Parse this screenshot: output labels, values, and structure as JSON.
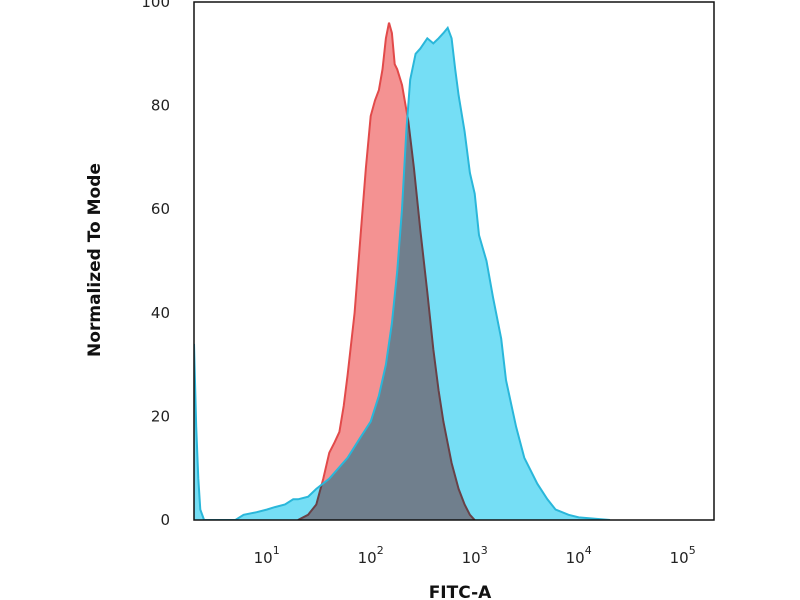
{
  "chart_data": {
    "type": "area",
    "xlabel": "FITC-A",
    "ylabel": "Normalized To Mode",
    "xscale": "log",
    "xlim": [
      2,
      200000
    ],
    "ylim": [
      0,
      100
    ],
    "grid": false,
    "legend": "none",
    "yticks": [
      0,
      20,
      40,
      60,
      80,
      100
    ],
    "xticks": [
      {
        "base": "10",
        "exp": "1",
        "value": 10
      },
      {
        "base": "10",
        "exp": "2",
        "value": 100
      },
      {
        "base": "10",
        "exp": "3",
        "value": 1000
      },
      {
        "base": "10",
        "exp": "4",
        "value": 10000
      },
      {
        "base": "10",
        "exp": "5",
        "value": 100000
      }
    ],
    "series": [
      {
        "color": "#e24a4a",
        "fill": "#f27f7f",
        "points": [
          [
            20,
            0
          ],
          [
            25,
            1
          ],
          [
            30,
            3
          ],
          [
            35,
            8
          ],
          [
            40,
            13
          ],
          [
            45,
            15
          ],
          [
            50,
            17
          ],
          [
            55,
            22
          ],
          [
            60,
            28
          ],
          [
            70,
            40
          ],
          [
            80,
            55
          ],
          [
            90,
            68
          ],
          [
            100,
            78
          ],
          [
            110,
            81
          ],
          [
            120,
            83
          ],
          [
            130,
            87
          ],
          [
            140,
            93
          ],
          [
            150,
            96
          ],
          [
            160,
            94
          ],
          [
            170,
            88
          ],
          [
            180,
            87
          ],
          [
            200,
            84
          ],
          [
            230,
            77
          ],
          [
            260,
            68
          ],
          [
            300,
            56
          ],
          [
            350,
            44
          ],
          [
            400,
            33
          ],
          [
            450,
            25
          ],
          [
            500,
            19
          ],
          [
            600,
            11
          ],
          [
            700,
            6
          ],
          [
            800,
            3
          ],
          [
            900,
            1
          ],
          [
            1000,
            0
          ]
        ]
      },
      {
        "color": "#2ab7da",
        "fill": "#5dd8f3",
        "points": [
          [
            2,
            34
          ],
          [
            2.1,
            18
          ],
          [
            2.2,
            8
          ],
          [
            2.3,
            2
          ],
          [
            2.5,
            0
          ],
          [
            5,
            0
          ],
          [
            6,
            1
          ],
          [
            8,
            1.5
          ],
          [
            10,
            2
          ],
          [
            12,
            2.5
          ],
          [
            15,
            3
          ],
          [
            18,
            4
          ],
          [
            20,
            4
          ],
          [
            25,
            4.5
          ],
          [
            30,
            6
          ],
          [
            40,
            8
          ],
          [
            60,
            12
          ],
          [
            80,
            16
          ],
          [
            100,
            19
          ],
          [
            120,
            24
          ],
          [
            140,
            30
          ],
          [
            160,
            38
          ],
          [
            180,
            48
          ],
          [
            200,
            60
          ],
          [
            220,
            75
          ],
          [
            240,
            85
          ],
          [
            270,
            90
          ],
          [
            300,
            91
          ],
          [
            350,
            93
          ],
          [
            400,
            92
          ],
          [
            450,
            93
          ],
          [
            500,
            94
          ],
          [
            550,
            95
          ],
          [
            600,
            93
          ],
          [
            650,
            87
          ],
          [
            700,
            82
          ],
          [
            800,
            75
          ],
          [
            900,
            67
          ],
          [
            1000,
            63
          ],
          [
            1100,
            55
          ],
          [
            1300,
            50
          ],
          [
            1500,
            43
          ],
          [
            1800,
            35
          ],
          [
            2000,
            27
          ],
          [
            2500,
            18
          ],
          [
            3000,
            12
          ],
          [
            4000,
            7
          ],
          [
            5000,
            4
          ],
          [
            6000,
            2
          ],
          [
            8000,
            1
          ],
          [
            10000,
            0.5
          ],
          [
            20000,
            0
          ]
        ]
      }
    ]
  }
}
